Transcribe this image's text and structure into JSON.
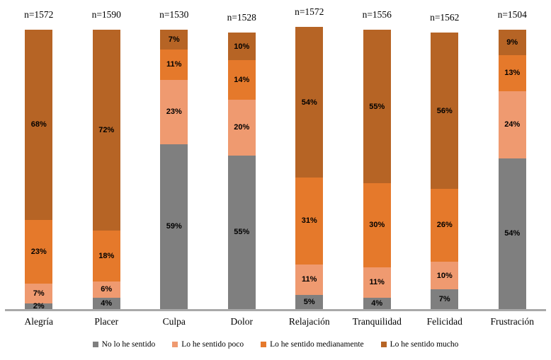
{
  "chart_data": {
    "type": "bar",
    "stacked": true,
    "orientation": "vertical",
    "grid": false,
    "legend_position": "bottom",
    "value_suffix": "%",
    "ylim": [
      0,
      100
    ],
    "categories": [
      "Alegría",
      "Placer",
      "Culpa",
      "Dolor",
      "Relajación",
      "Tranquilidad",
      "Felicidad",
      "Frustración"
    ],
    "n_labels": [
      "n=1572",
      "n=1590",
      "n=1530",
      "n=1528",
      "n=1572",
      "n=1556",
      "n=1562",
      "n=1504"
    ],
    "series": [
      {
        "name": "No lo he sentido",
        "color": "#7f7f7f",
        "values": [
          2,
          4,
          59,
          55,
          5,
          4,
          7,
          54
        ]
      },
      {
        "name": "Lo he sentido poco",
        "color": "#ef9a70",
        "values": [
          7,
          6,
          23,
          20,
          11,
          11,
          10,
          24
        ]
      },
      {
        "name": "Lo he sentido medianamente",
        "color": "#e5792b",
        "values": [
          23,
          18,
          11,
          14,
          31,
          30,
          26,
          13
        ]
      },
      {
        "name": "Lo he sentido mucho",
        "color": "#b66425",
        "values": [
          68,
          72,
          7,
          10,
          54,
          55,
          56,
          9
        ]
      }
    ],
    "colors": {
      "axis_line": "#a9a9a9",
      "label_text": "#000000"
    }
  }
}
